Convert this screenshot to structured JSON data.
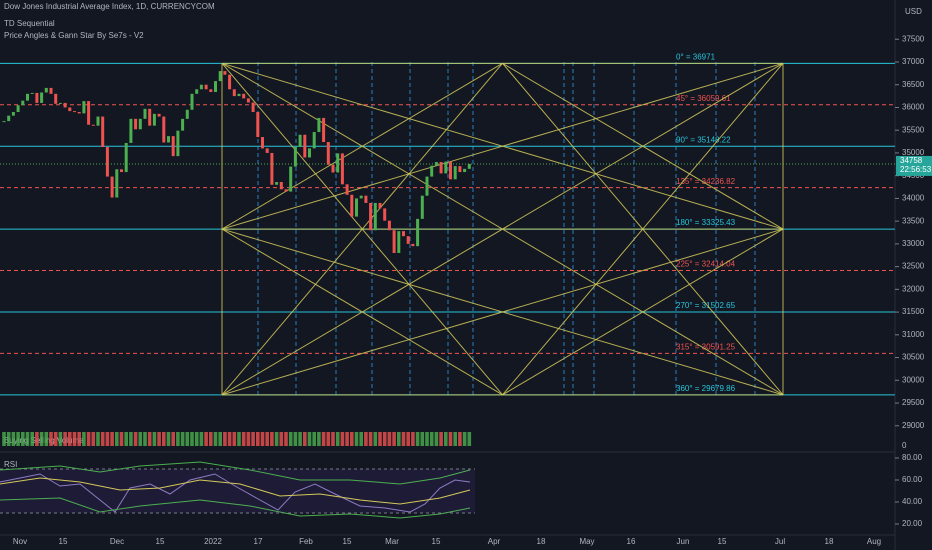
{
  "header": {
    "title": "Dow Jones Industrial Average Index, 1D, CURRENCYCOM",
    "indicators": [
      "TD Sequential",
      "Price Angles & Gann Star By Se7s - V2"
    ]
  },
  "price": {
    "values": [
      35700,
      35820,
      35900,
      36050,
      36150,
      36300,
      36320,
      36100,
      36330,
      36430,
      36300,
      36080,
      36100,
      36000,
      35920,
      35900,
      35870,
      36140,
      35620,
      35600,
      35800,
      35130,
      34480,
      34020,
      34640,
      34580,
      35220,
      35750,
      35520,
      35750,
      35970,
      35600,
      35860,
      35800,
      35230,
      35370,
      34930,
      35490,
      35750,
      35950,
      36300,
      36400,
      36500,
      36400,
      36340,
      36580,
      36800,
      36720,
      36400,
      36250,
      36300,
      36200,
      36110,
      35900,
      35350,
      35100,
      35000,
      34300,
      34360,
      34200,
      34150,
      34700,
      35130,
      35400,
      34900,
      35100,
      35460,
      35770,
      35240,
      34740,
      34570,
      34990,
      34310,
      34080,
      33600,
      34000,
      34060,
      33900,
      33300,
      33900,
      33780,
      33510,
      33300,
      32800,
      33280,
      33170,
      33000,
      32950,
      33550,
      34060,
      34480,
      34720,
      34800,
      34550,
      34810,
      34420,
      34710,
      34580,
      34650,
      34758
    ],
    "last_label": "34758",
    "countdown": "22:56:53"
  },
  "yaxis": {
    "unit": "USD",
    "ticks": [
      37500,
      37000,
      36500,
      36000,
      35500,
      35000,
      34500,
      34000,
      33500,
      33000,
      32500,
      32000,
      31500,
      31000,
      30500,
      30000,
      29500,
      29000
    ]
  },
  "xaxis": {
    "labels": [
      "Nov",
      "15",
      "Dec",
      "15",
      "2022",
      "17",
      "Feb",
      "15",
      "Mar",
      "15",
      "Apr",
      "18",
      "May",
      "16",
      "Jun",
      "15",
      "Jul",
      "18",
      "Aug"
    ]
  },
  "gann": {
    "levels": [
      {
        "value": 36971,
        "label": "0° = 36971"
      },
      {
        "value": 36059.61,
        "label": "45° = 36059.61"
      },
      {
        "value": 35148.22,
        "label": "90° = 35148.22"
      },
      {
        "value": 34236.82,
        "label": "135° = 34236.82"
      },
      {
        "value": 33325.43,
        "label": "180° = 33325.43"
      },
      {
        "value": 32414.04,
        "label": "225° = 32414.04"
      },
      {
        "value": 31502.65,
        "label": "270° = 31502.65"
      },
      {
        "value": 30591.25,
        "label": "315° = 30591.25"
      },
      {
        "value": 29679.86,
        "label": "360° = 29679.86"
      }
    ]
  },
  "volume": {
    "title": "Buying Selling Volume",
    "tick": 0
  },
  "rsi": {
    "title": "RSI",
    "ticks": [
      {
        "value": 80,
        "label": "80.00"
      },
      {
        "value": 60,
        "label": "60.00"
      },
      {
        "value": 40,
        "label": "40.00"
      },
      {
        "value": 20,
        "label": "20.00"
      }
    ]
  }
}
